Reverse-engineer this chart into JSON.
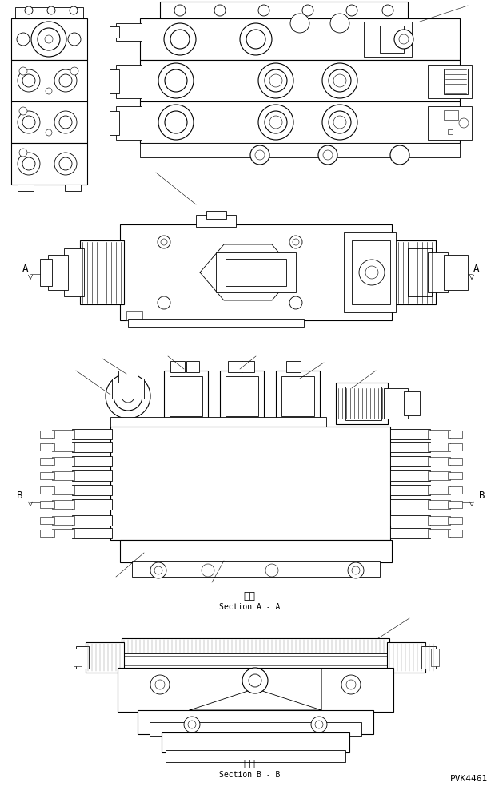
{
  "bg_color": "#ffffff",
  "line_color": "#000000",
  "fig_width": 6.24,
  "fig_height": 9.95,
  "dpi": 100,
  "part_code": "PVK4461",
  "section_aa_jp": "断面",
  "section_aa_en": "Section A - A",
  "section_bb_jp": "断面",
  "section_bb_en": "Section B - B",
  "label_A": "A",
  "label_B": "B",
  "lw_main": 0.8,
  "lw_thin": 0.4,
  "lw_med": 0.6
}
